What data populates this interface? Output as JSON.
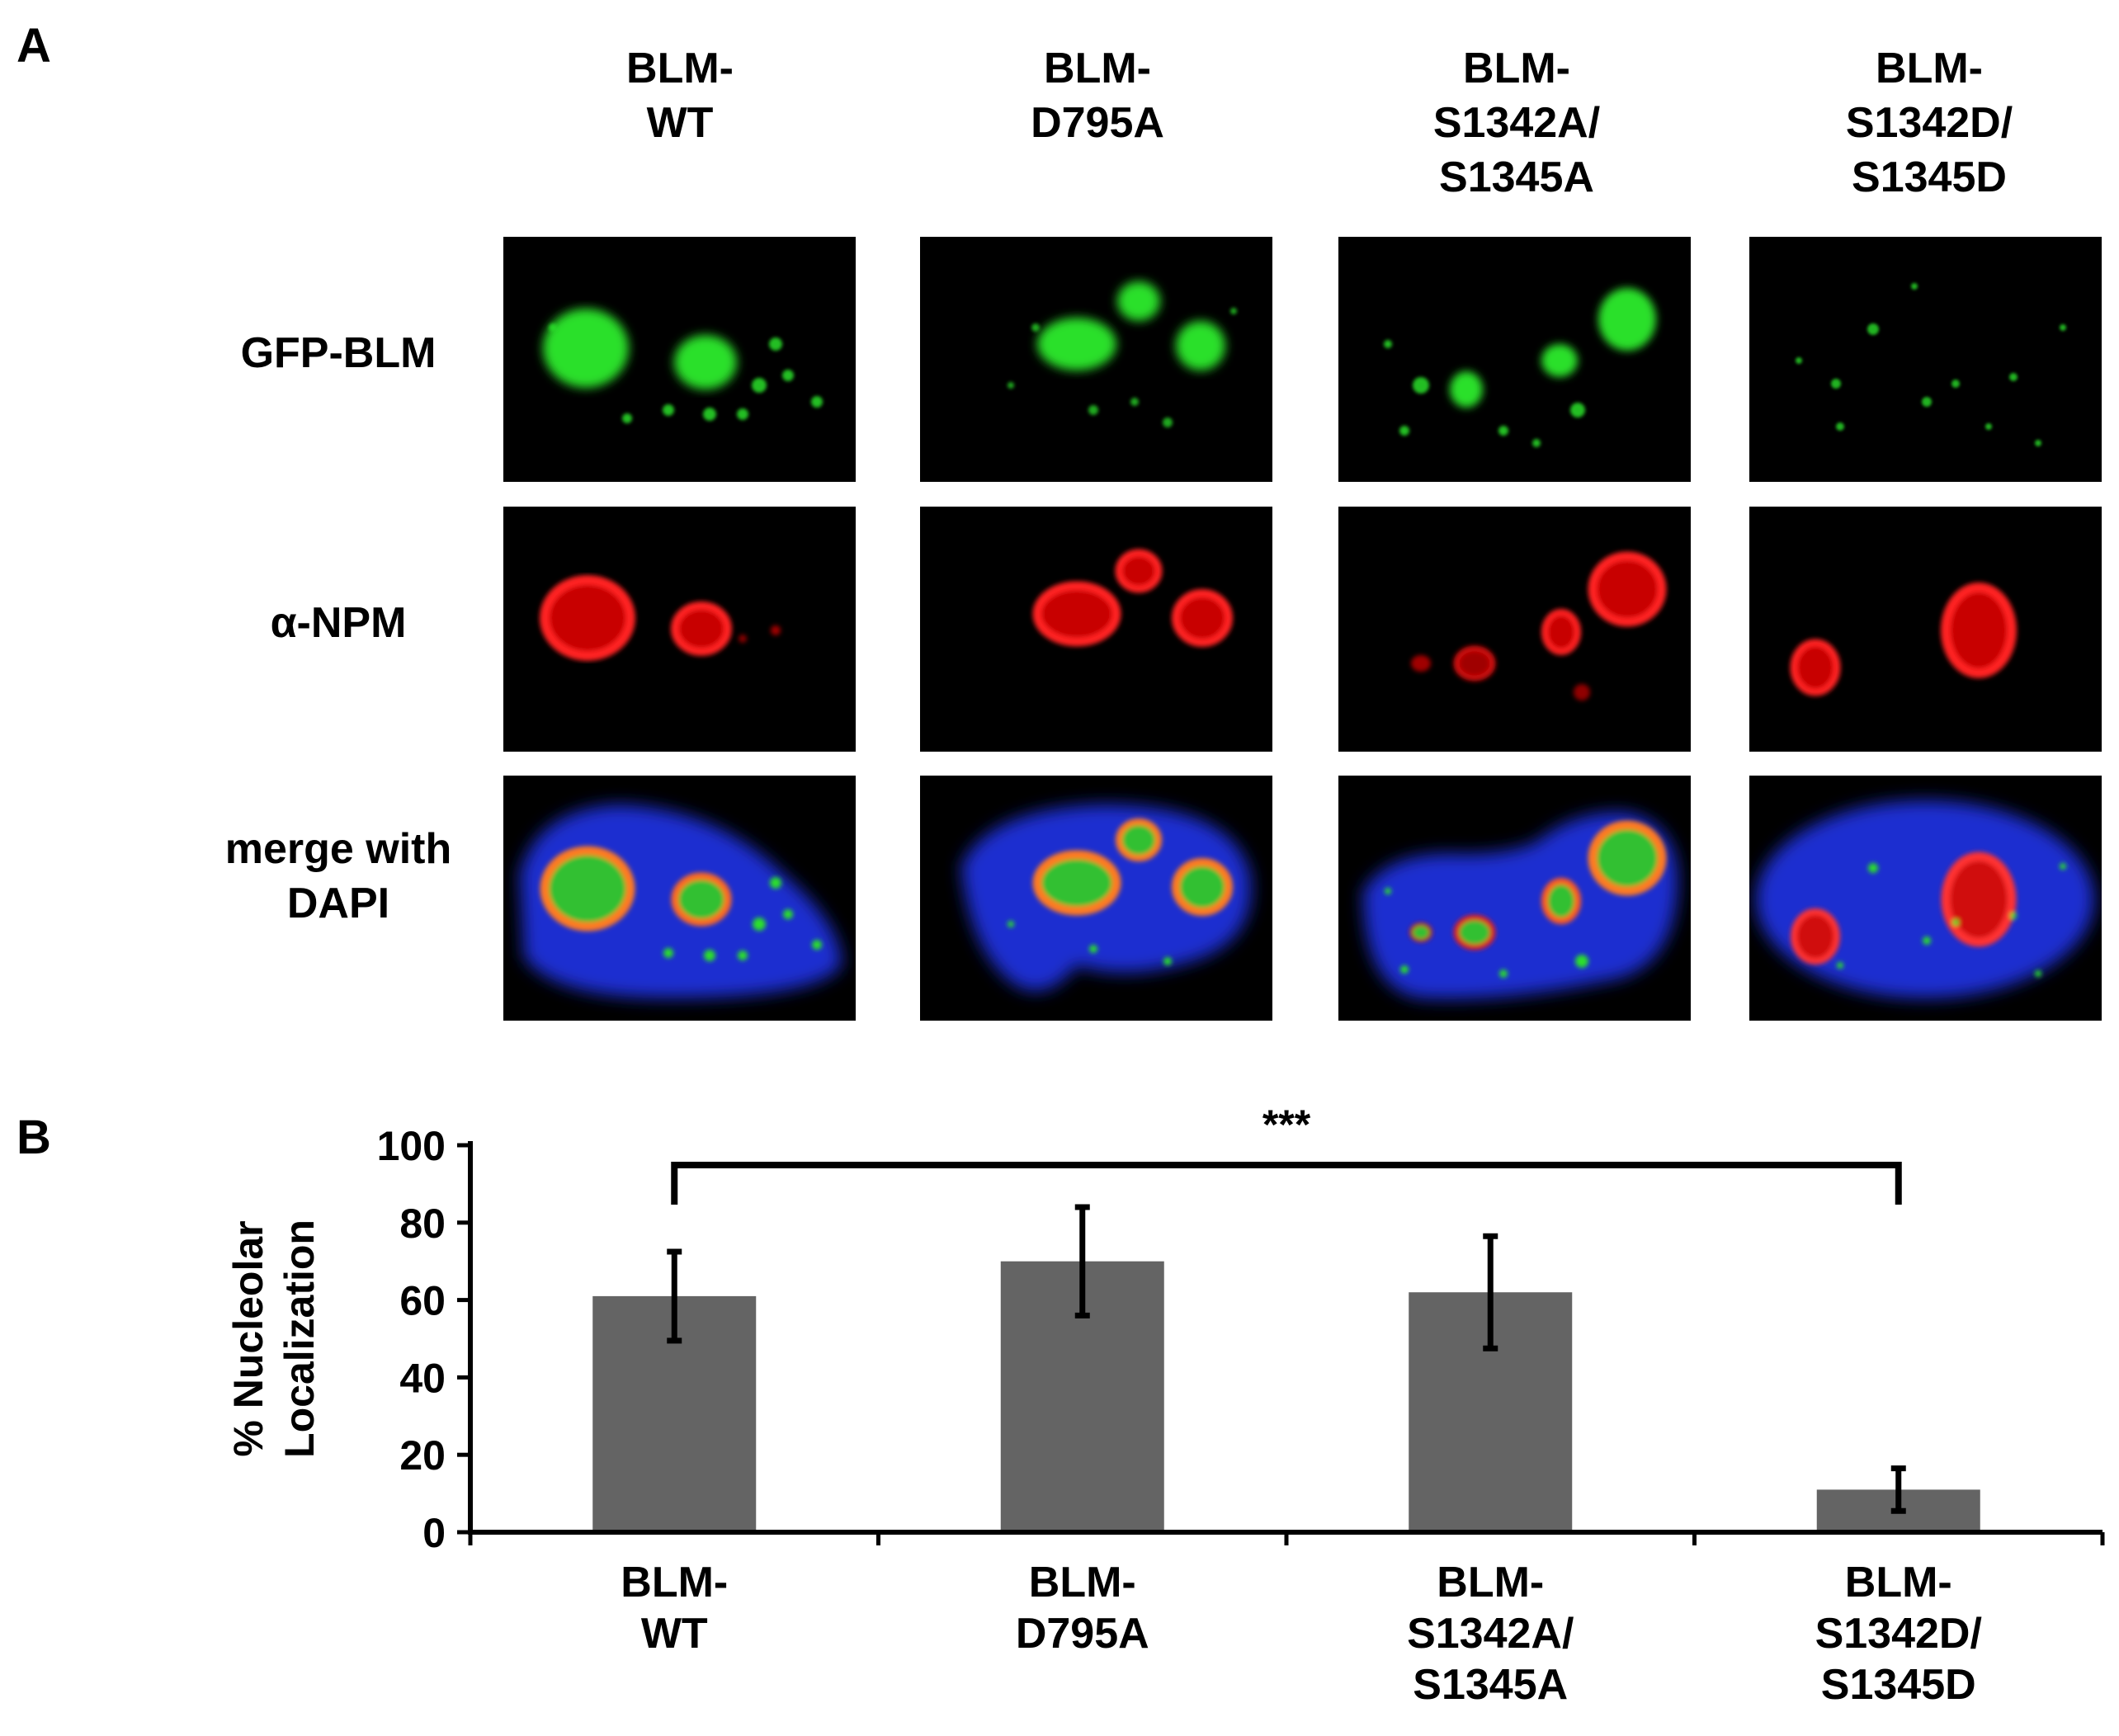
{
  "figure": {
    "panel_a_label": "A",
    "panel_b_label": "B",
    "columns": [
      {
        "line1": "BLM-",
        "line2": "WT",
        "line3": ""
      },
      {
        "line1": "BLM-",
        "line2": "D795A",
        "line3": ""
      },
      {
        "line1": "BLM-",
        "line2": "S1342A/",
        "line3": "S1345A"
      },
      {
        "line1": "BLM-",
        "line2": "S1342D/",
        "line3": "S1345D"
      }
    ],
    "rows": [
      {
        "line1": "GFP-BLM",
        "line2": ""
      },
      {
        "line1": "α-NPM",
        "line2": ""
      },
      {
        "line1": "merge with",
        "line2": "DAPI"
      }
    ],
    "channel_colors": {
      "gfp": "#22dd22",
      "npm": "#ff1a1a",
      "dapi": "#1f2fd0"
    }
  },
  "chart_data": {
    "type": "bar",
    "categories": [
      [
        "BLM-",
        "WT"
      ],
      [
        "BLM-",
        "D795A"
      ],
      [
        "BLM-",
        "S1342A/",
        "S1345A"
      ],
      [
        "BLM-",
        "S1342D/",
        "S1345D"
      ]
    ],
    "values": [
      61,
      70,
      62,
      11
    ],
    "errors": [
      11.5,
      14,
      14.5,
      5.5
    ],
    "ylabel": [
      "% Nucleolar",
      "Localization"
    ],
    "ylim": [
      0,
      100
    ],
    "yticks": [
      0,
      20,
      40,
      60,
      80,
      100
    ],
    "significance": {
      "label": "***",
      "from_category": 0,
      "to_category": 3
    },
    "bar_color": "#646464",
    "grid": false
  }
}
